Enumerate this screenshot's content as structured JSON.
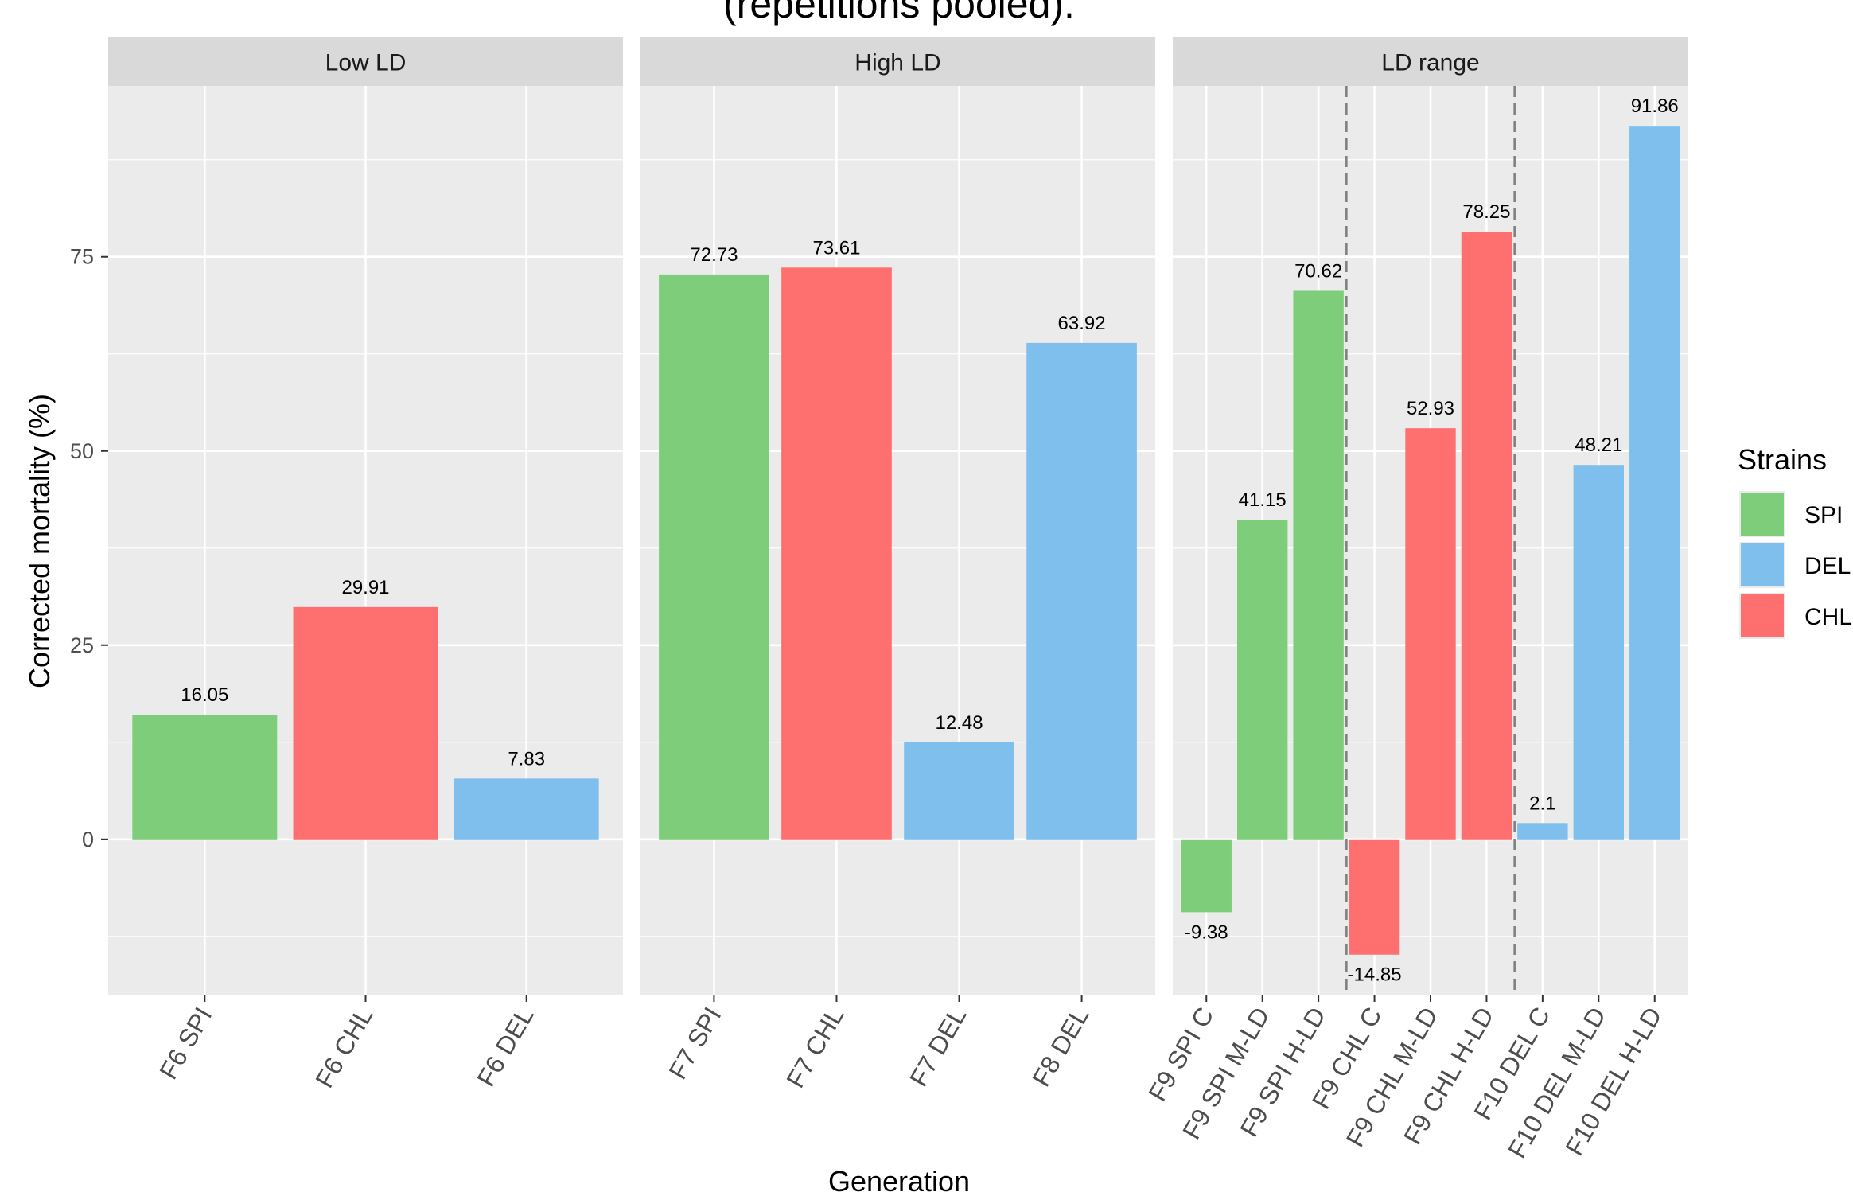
{
  "chart_data": {
    "type": "bar",
    "title": "(repetitions pooled).",
    "xlabel": "Generation",
    "ylabel": "Corrected mortality (%)",
    "ylim": [
      -20,
      97
    ],
    "yticks": [
      0,
      25,
      50,
      75
    ],
    "grid": true,
    "legend": {
      "title": "Strains",
      "placement": "right",
      "entries": [
        {
          "name": "SPI",
          "color": "#7dcd7a"
        },
        {
          "name": "DEL",
          "color": "#7fbfee"
        },
        {
          "name": "CHL",
          "color": "#fe7070"
        }
      ]
    },
    "facets": [
      {
        "label": "Low LD",
        "categories": [
          "F6 SPI",
          "F6 CHL",
          "F6 DEL"
        ],
        "strains": [
          "SPI",
          "CHL",
          "DEL"
        ],
        "values": [
          16.05,
          29.91,
          7.83
        ],
        "value_labels": [
          "16.05",
          "29.91",
          "7.83"
        ],
        "separators_after": []
      },
      {
        "label": "High LD",
        "categories": [
          "F7 SPI",
          "F7 CHL",
          "F7 DEL",
          "F8 DEL"
        ],
        "strains": [
          "SPI",
          "CHL",
          "DEL",
          "DEL"
        ],
        "values": [
          72.73,
          73.61,
          12.48,
          63.92
        ],
        "value_labels": [
          "72.73",
          "73.61",
          "12.48",
          "63.92"
        ],
        "separators_after": []
      },
      {
        "label": "LD range",
        "categories": [
          "F9 SPI C",
          "F9 SPI M-LD",
          "F9 SPI H-LD",
          "F9 CHL C",
          "F9 CHL M-LD",
          "F9 CHL H-LD",
          "F10 DEL C",
          "F10 DEL M-LD",
          "F10 DEL H-LD"
        ],
        "strains": [
          "SPI",
          "SPI",
          "SPI",
          "CHL",
          "CHL",
          "CHL",
          "DEL",
          "DEL",
          "DEL"
        ],
        "values": [
          -9.38,
          41.15,
          70.62,
          -14.85,
          52.93,
          78.25,
          2.1,
          48.21,
          91.86
        ],
        "value_labels": [
          "-9.38",
          "41.15",
          "70.62",
          "-14.85",
          "52.93",
          "78.25",
          "2.1",
          "48.21",
          "91.86"
        ],
        "separators_after": [
          3,
          6
        ]
      }
    ]
  }
}
